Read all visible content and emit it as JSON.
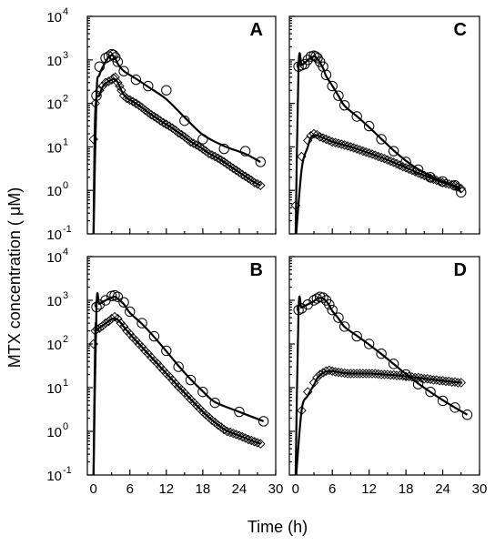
{
  "chart_data": {
    "type": "scatter",
    "layout": "2x2 panels, shared axes",
    "xlabel": "Time  (h)",
    "ylabel": "MTX concentration ( μM)",
    "xlim": [
      -1,
      30
    ],
    "x_ticks": [
      "0",
      "6",
      "12",
      "18",
      "24",
      "30"
    ],
    "x_tick_values": [
      0,
      6,
      12,
      18,
      24,
      30
    ],
    "ylim": [
      0.1,
      10000
    ],
    "yscale": "log",
    "y_ticks": [
      {
        "value": 10000,
        "base": "10",
        "exp": "4"
      },
      {
        "value": 1000,
        "base": "10",
        "exp": "3"
      },
      {
        "value": 100,
        "base": "10",
        "exp": "2"
      },
      {
        "value": 10,
        "base": "10",
        "exp": "1"
      },
      {
        "value": 1,
        "base": "10",
        "exp": "0"
      },
      {
        "value": 0.1,
        "base": "10",
        "exp": "-1"
      }
    ],
    "grid": false,
    "legend": "none",
    "panels": [
      {
        "label": "A",
        "position": "top-left",
        "series": [
          {
            "marker": "circle",
            "x": [
              0.5,
              1,
              2,
              2.5,
              3,
              3.3,
              3.6,
              4,
              5,
              7,
              9,
              12,
              15,
              18,
              21.5,
              25,
              27.5
            ],
            "y": [
              150,
              700,
              1100,
              1200,
              1350,
              1300,
              1150,
              900,
              550,
              350,
              250,
              200,
              40,
              15,
              9,
              8,
              4.5
            ]
          },
          {
            "marker": "diamond",
            "x": [
              0,
              0.3,
              1,
              1.5,
              2,
              2.5,
              3,
              3.3,
              3.6,
              4,
              4.3,
              4.6,
              5,
              5.5,
              6,
              6.5,
              7,
              7.5,
              8,
              8.5,
              9,
              9.5,
              10,
              10.5,
              11,
              11.5,
              12,
              12.5,
              13,
              13.5,
              14,
              14.5,
              15,
              15.5,
              16,
              16.5,
              17,
              17.5,
              18,
              18.5,
              19,
              19.5,
              20,
              20.5,
              21,
              21.5,
              22,
              22.5,
              23,
              23.5,
              24,
              24.5,
              25,
              25.5,
              26,
              26.5,
              27,
              27.5
            ],
            "y": [
              15,
              100,
              200,
              250,
              300,
              320,
              350,
              380,
              400,
              300,
              250,
              200,
              150,
              130,
              120,
              110,
              100,
              90,
              80,
              70,
              62,
              55,
              50,
              45,
              40,
              36,
              33,
              30,
              27,
              24,
              21,
              19,
              17,
              15,
              13,
              12,
              11,
              10,
              9,
              8,
              7,
              6.5,
              6,
              5.5,
              5,
              4.5,
              4,
              3.6,
              3.2,
              2.9,
              2.6,
              2.3,
              2.1,
              1.9,
              1.7,
              1.5,
              1.4,
              1.3
            ]
          }
        ]
      },
      {
        "label": "C",
        "position": "top-right",
        "series": [
          {
            "marker": "circle",
            "x": [
              0.5,
              1,
              1.5,
              2,
              2.5,
              3,
              3.3,
              3.6,
              4,
              4.5,
              5,
              6,
              7,
              8,
              10,
              12,
              14,
              16,
              18,
              20,
              22,
              24,
              26,
              27
            ],
            "y": [
              700,
              750,
              800,
              1000,
              1200,
              1250,
              1200,
              1100,
              900,
              700,
              450,
              250,
              150,
              90,
              50,
              30,
              15,
              8,
              4.5,
              3,
              2,
              1.6,
              1.3,
              0.9
            ]
          },
          {
            "marker": "diamond",
            "x": [
              0,
              1,
              2,
              2.5,
              3,
              3.5,
              4,
              4.5,
              5,
              5.5,
              6,
              6.5,
              7,
              7.5,
              8,
              8.5,
              9,
              9.5,
              10,
              10.5,
              11,
              11.5,
              12,
              12.5,
              13,
              13.5,
              14,
              14.5,
              15,
              15.5,
              16,
              16.5,
              17,
              17.5,
              18,
              18.5,
              19,
              19.5,
              20,
              20.5,
              21,
              21.5,
              22,
              22.5,
              23,
              23.5,
              24,
              24.5,
              25,
              25.5,
              26,
              26.5,
              27
            ],
            "y": [
              0.45,
              6,
              14,
              18,
              20,
              19,
              17,
              16,
              15,
              14,
              13,
              12.5,
              12,
              11.5,
              11,
              10.5,
              10,
              9.5,
              9,
              8.5,
              8,
              7.6,
              7.2,
              6.8,
              6.4,
              6,
              5.7,
              5.4,
              5,
              4.7,
              4.4,
              4.1,
              3.8,
              3.5,
              3.3,
              3.1,
              2.9,
              2.7,
              2.5,
              2.35,
              2.2,
              2.05,
              1.9,
              1.8,
              1.7,
              1.6,
              1.5,
              1.45,
              1.4,
              1.35,
              1.3,
              1.2,
              1.1
            ]
          }
        ]
      },
      {
        "label": "B",
        "position": "bottom-left",
        "series": [
          {
            "marker": "circle",
            "x": [
              0.5,
              1,
              2,
              3,
              3.5,
              4,
              5,
              6,
              8,
              10,
              12,
              14,
              16,
              18,
              20,
              24,
              28
            ],
            "y": [
              700,
              800,
              1000,
              1250,
              1300,
              1200,
              900,
              550,
              300,
              150,
              70,
              30,
              15,
              8,
              4.5,
              2.8,
              1.7
            ]
          },
          {
            "marker": "diamond",
            "x": [
              0,
              0.3,
              0.6,
              1,
              1.5,
              2,
              2.5,
              3,
              3.5,
              4,
              4.5,
              5,
              5.5,
              6,
              6.5,
              7,
              7.5,
              8,
              8.5,
              9,
              9.5,
              10,
              10.5,
              11,
              11.5,
              12,
              12.5,
              13,
              13.5,
              14,
              14.5,
              15,
              15.5,
              16,
              16.5,
              17,
              17.5,
              18,
              18.5,
              19,
              19.5,
              20,
              20.5,
              21,
              21.5,
              22,
              22.5,
              23,
              23.5,
              24,
              24.5,
              25,
              25.5,
              26,
              26.5,
              27,
              27.5
            ],
            "y": [
              100,
              200,
              220,
              230,
              260,
              300,
              330,
              380,
              420,
              380,
              300,
              250,
              200,
              170,
              140,
              120,
              100,
              85,
              70,
              60,
              50,
              42,
              36,
              30,
              25,
              21,
              18,
              15,
              12.5,
              10.5,
              9,
              7.6,
              6.4,
              5.4,
              4.6,
              3.9,
              3.3,
              2.8,
              2.4,
              2.1,
              1.8,
              1.6,
              1.4,
              1.25,
              1.1,
              1,
              0.95,
              0.9,
              0.85,
              0.8,
              0.75,
              0.7,
              0.65,
              0.62,
              0.58,
              0.55,
              0.52
            ]
          }
        ]
      },
      {
        "label": "D",
        "position": "bottom-right",
        "series": [
          {
            "marker": "circle",
            "x": [
              0.5,
              1,
              2,
              3,
              3.5,
              4,
              4.5,
              5,
              5.5,
              6,
              7,
              8,
              10,
              12,
              14,
              16,
              18,
              20,
              22,
              24,
              26,
              28
            ],
            "y": [
              600,
              650,
              800,
              1000,
              1100,
              1200,
              1150,
              1000,
              800,
              600,
              400,
              250,
              150,
              100,
              60,
              35,
              20,
              12,
              8,
              5,
              3.5,
              2.4
            ]
          },
          {
            "marker": "diamond",
            "x": [
              1,
              2,
              3,
              3.5,
              4,
              4.5,
              5,
              5.5,
              6,
              6.5,
              7,
              7.5,
              8,
              8.5,
              9,
              9.5,
              10,
              10.5,
              11,
              11.5,
              12,
              12.5,
              13,
              13.5,
              14,
              14.5,
              15,
              15.5,
              16,
              16.5,
              17,
              17.5,
              18,
              18.5,
              19,
              19.5,
              20,
              20.5,
              21,
              21.5,
              22,
              22.5,
              23,
              23.5,
              24,
              24.5,
              25,
              25.5,
              26,
              26.5,
              27
            ],
            "y": [
              3,
              8,
              13,
              17,
              20,
              22,
              24,
              25,
              24,
              23,
              22.5,
              22,
              21.5,
              21,
              21,
              21,
              21,
              21,
              21,
              21,
              21,
              21,
              21,
              20.5,
              20,
              20,
              20,
              19.5,
              19.5,
              19,
              19,
              18.5,
              18,
              18,
              17.5,
              17,
              17,
              16.5,
              16,
              16,
              15.5,
              15,
              15,
              14.5,
              14.5,
              14,
              14,
              13.5,
              13.5,
              13,
              13
            ]
          }
        ]
      }
    ]
  }
}
